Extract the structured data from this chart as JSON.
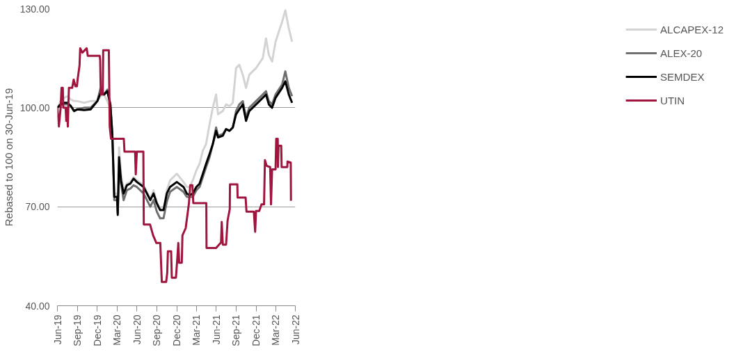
{
  "chart_data": {
    "type": "line",
    "ylabel": "Rebased to 100 on 30-Jun-19",
    "ylim": [
      40,
      130
    ],
    "yticks": [
      {
        "value": 40,
        "label": "40.00"
      },
      {
        "value": 70,
        "label": "70.00"
      },
      {
        "value": 100,
        "label": "100.00"
      },
      {
        "value": 130,
        "label": "130.00"
      }
    ],
    "xlim": [
      "2019-06-30",
      "2022-06-30"
    ],
    "xticks": [
      {
        "value": "2019-06-30",
        "label": "Jun-19"
      },
      {
        "value": "2019-09-30",
        "label": "Sep-19"
      },
      {
        "value": "2019-12-31",
        "label": "Dec-19"
      },
      {
        "value": "2020-03-31",
        "label": "Mar-20"
      },
      {
        "value": "2020-06-30",
        "label": "Jun-20"
      },
      {
        "value": "2020-09-30",
        "label": "Sep-20"
      },
      {
        "value": "2020-12-31",
        "label": "Dec-20"
      },
      {
        "value": "2021-03-31",
        "label": "Mar-21"
      },
      {
        "value": "2021-06-30",
        "label": "Jun-21"
      },
      {
        "value": "2021-09-30",
        "label": "Sep-21"
      },
      {
        "value": "2021-12-31",
        "label": "Dec-21"
      },
      {
        "value": "2022-03-31",
        "label": "Mar-22"
      },
      {
        "value": "2022-06-30",
        "label": "Jun-22"
      }
    ],
    "grid": "y",
    "legend": "right",
    "marker": "none",
    "line_style": "solid",
    "x": [
      "2019-06-30",
      "2019-07-15",
      "2019-07-31",
      "2019-08-15",
      "2019-08-31",
      "2019-09-15",
      "2019-09-30",
      "2019-10-31",
      "2019-11-30",
      "2019-12-31",
      "2020-01-15",
      "2020-01-31",
      "2020-02-15",
      "2020-02-29",
      "2020-03-09",
      "2020-03-18",
      "2020-03-31",
      "2020-04-03",
      "2020-04-09",
      "2020-04-18",
      "2020-04-30",
      "2020-05-15",
      "2020-05-31",
      "2020-06-15",
      "2020-06-30",
      "2020-07-31",
      "2020-08-31",
      "2020-09-15",
      "2020-09-30",
      "2020-10-15",
      "2020-10-31",
      "2020-11-15",
      "2020-11-30",
      "2020-12-31",
      "2021-01-31",
      "2021-02-15",
      "2021-02-28",
      "2021-03-15",
      "2021-03-31",
      "2021-04-15",
      "2021-04-30",
      "2021-05-15",
      "2021-05-31",
      "2021-06-15",
      "2021-06-30",
      "2021-07-09",
      "2021-07-31",
      "2021-08-15",
      "2021-08-31",
      "2021-09-15",
      "2021-09-30",
      "2021-10-15",
      "2021-10-31",
      "2021-11-15",
      "2021-11-30",
      "2021-12-31",
      "2022-01-31",
      "2022-02-15",
      "2022-02-28",
      "2022-03-15",
      "2022-03-31",
      "2022-04-30",
      "2022-05-15",
      "2022-05-31",
      "2022-06-15"
    ],
    "series": [
      {
        "name": "ALCAPEX-12",
        "color": "#d3d3d3",
        "values": [
          100,
          102,
          103,
          103.5,
          102.5,
          102,
          102,
          101.5,
          102,
          102,
          103.5,
          104,
          102,
          100,
          92,
          74,
          74,
          71,
          88,
          80,
          75,
          77,
          77.5,
          79,
          78,
          76.5,
          72.5,
          75,
          71.5,
          69.5,
          69,
          75,
          78,
          80,
          77.5,
          76,
          76,
          78,
          81,
          83,
          87,
          89,
          95,
          100,
          104,
          98,
          99,
          101,
          100.5,
          101.5,
          112,
          113,
          110,
          106,
          110,
          112,
          115,
          121,
          116,
          114,
          120,
          126,
          129.5,
          124,
          120
        ]
      },
      {
        "name": "ALEX-20",
        "color": "#707070",
        "values": [
          100,
          101,
          101,
          101,
          100.5,
          99,
          99.5,
          100,
          100,
          102,
          106,
          104,
          105.5,
          101,
          92,
          72,
          72,
          68,
          80,
          77,
          72,
          75,
          75.5,
          76.5,
          76,
          74,
          70,
          72,
          68.5,
          66.5,
          66.5,
          71.5,
          74.5,
          76,
          74.5,
          73,
          73,
          73,
          75,
          76,
          79,
          82,
          85,
          89,
          94,
          91.5,
          92,
          93.5,
          93,
          94,
          99,
          101,
          102,
          97,
          100,
          102,
          104,
          105,
          102,
          101,
          104,
          107,
          111,
          106,
          103.5
        ]
      },
      {
        "name": "SEMDEX",
        "color": "#000000",
        "values": [
          100,
          101,
          101.5,
          101.5,
          100.5,
          99,
          99.5,
          99.3,
          99.5,
          102,
          104.5,
          104,
          105,
          101,
          92,
          73,
          73,
          67.5,
          85,
          78,
          74,
          76.5,
          77,
          78.5,
          77.5,
          76,
          72,
          74,
          71,
          69,
          69,
          74,
          76,
          77.5,
          76,
          74,
          73.5,
          74,
          76,
          77,
          80,
          83,
          86,
          89,
          93,
          91,
          91.5,
          93.5,
          93,
          94,
          98,
          99.5,
          101,
          96,
          99,
          101,
          103,
          104,
          101,
          100,
          103,
          106,
          108,
          104,
          101.5
        ]
      },
      {
        "name": "UTIN",
        "color": "#a0153e",
        "x": [
          "2019-06-30",
          "2019-07-07",
          "2019-07-15",
          "2019-07-19",
          "2019-07-25",
          "2019-07-27",
          "2019-08-07",
          "2019-08-10",
          "2019-08-14",
          "2019-08-17",
          "2019-08-22",
          "2019-09-06",
          "2019-09-13",
          "2019-09-21",
          "2019-09-28",
          "2019-10-01",
          "2019-10-10",
          "2019-10-13",
          "2019-10-23",
          "2019-11-12",
          "2019-11-17",
          "2020-01-11",
          "2020-01-13",
          "2020-01-16",
          "2020-01-25",
          "2020-01-27",
          "2020-02-22",
          "2020-02-26",
          "2020-03-03",
          "2020-05-01",
          "2020-05-04",
          "2020-06-22",
          "2020-06-25",
          "2020-06-30",
          "2020-07-30",
          "2020-08-01",
          "2020-08-30",
          "2020-09-13",
          "2020-09-28",
          "2020-10-16",
          "2020-10-23",
          "2020-11-12",
          "2020-11-17",
          "2020-11-20",
          "2020-12-05",
          "2020-12-08",
          "2020-12-27",
          "2021-01-01",
          "2021-01-07",
          "2021-01-11",
          "2021-01-23",
          "2021-01-26",
          "2021-02-10",
          "2021-02-25",
          "2021-03-03",
          "2021-03-13",
          "2021-03-17",
          "2021-05-16",
          "2021-05-17",
          "2021-06-30",
          "2021-07-23",
          "2021-07-26",
          "2021-07-31",
          "2021-08-15",
          "2021-08-22",
          "2021-09-01",
          "2021-09-02",
          "2021-10-06",
          "2021-10-07",
          "2021-11-13",
          "2021-11-17",
          "2021-12-21",
          "2021-12-27",
          "2021-12-31",
          "2022-01-15",
          "2022-01-25",
          "2022-02-06",
          "2022-02-10",
          "2022-02-18",
          "2022-03-06",
          "2022-03-10",
          "2022-03-15",
          "2022-03-31",
          "2022-04-03",
          "2022-04-10",
          "2022-04-11",
          "2022-04-14",
          "2022-04-26",
          "2022-04-28",
          "2022-05-24",
          "2022-05-25",
          "2022-06-09",
          "2022-06-10"
        ],
        "values": [
          100,
          94.3,
          100,
          106,
          106,
          100,
          100,
          96,
          100,
          94.3,
          106,
          106,
          108.5,
          106.5,
          106.5,
          108.5,
          112.8,
          118,
          116.7,
          118,
          115.7,
          115.7,
          114.6,
          104,
          104,
          117.4,
          117.4,
          94.3,
          90.6,
          90.6,
          86.7,
          86.7,
          79.8,
          86.7,
          86.7,
          64.6,
          64.6,
          61.3,
          59,
          59,
          47.2,
          47.2,
          50,
          56.5,
          56.5,
          48.5,
          48.5,
          53,
          59,
          53,
          53,
          61.3,
          63.5,
          71.1,
          76.5,
          76.5,
          71.1,
          71.1,
          57.5,
          57.5,
          59.2,
          65.4,
          58.5,
          58.5,
          65.8,
          69.3,
          76.8,
          76.8,
          72.8,
          72.8,
          68.5,
          68.5,
          62.4,
          68.7,
          68.7,
          70.7,
          70.7,
          84.1,
          82.4,
          82,
          70.7,
          81.3,
          81.3,
          90.6,
          90.6,
          82,
          88.5,
          88.5,
          82,
          82,
          83.7,
          83.4,
          71.8
        ]
      }
    ]
  }
}
